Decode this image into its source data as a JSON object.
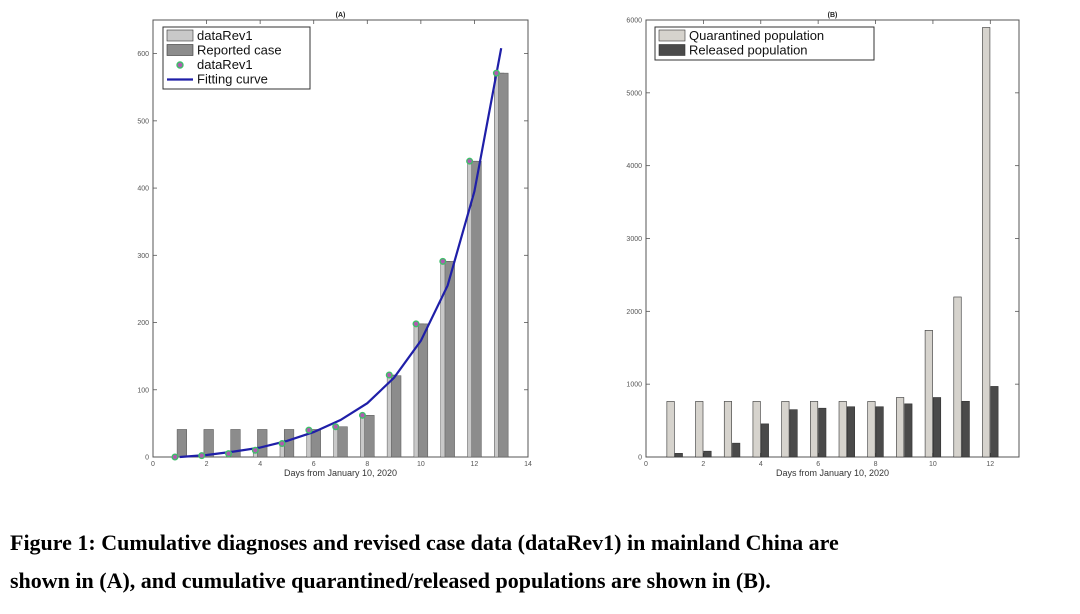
{
  "caption": {
    "line1": "Figure 1: Cumulative diagnoses and revised case data (dataRev1) in mainland China are",
    "line2": "shown in (A), and cumulative quarantined/released populations are shown in (B)."
  },
  "chart_data": [
    {
      "type": "bar",
      "title": "(A)",
      "xlabel": "Days from January 10, 2020",
      "ylabel": "",
      "xlim": [
        0,
        14
      ],
      "ylim": [
        0,
        650
      ],
      "xticks": [
        0,
        2,
        4,
        6,
        8,
        10,
        12,
        14
      ],
      "yticks": [
        0,
        100,
        200,
        300,
        400,
        500,
        600
      ],
      "grid": false,
      "legend_position": "top-left",
      "x": [
        1,
        2,
        3,
        4,
        5,
        6,
        7,
        8,
        9,
        10,
        11,
        12,
        13
      ],
      "series": [
        {
          "name": "dataRev1",
          "kind": "bar",
          "color": "#c9c9c9",
          "values": [
            0,
            2,
            5,
            10,
            20,
            40,
            45,
            62,
            122,
            198,
            291,
            440,
            571
          ]
        },
        {
          "name": "Reported case",
          "kind": "bar",
          "color": "#8c8c8c",
          "values": [
            41,
            41,
            41,
            41,
            41,
            41,
            45,
            62,
            121,
            198,
            291,
            440,
            571
          ]
        },
        {
          "name": "dataRev1",
          "kind": "marker",
          "color": "#b05ab0",
          "edge": "#3fbf6a",
          "values": [
            0,
            2,
            5,
            10,
            20,
            40,
            45,
            62,
            122,
            198,
            291,
            440,
            571
          ]
        },
        {
          "name": "Fitting curve",
          "kind": "line",
          "color": "#1f1fa8",
          "x": [
            1,
            2,
            3,
            4,
            5,
            6,
            7,
            8,
            9,
            10,
            11,
            12,
            13
          ],
          "values": [
            0,
            3,
            8,
            14,
            24,
            37,
            55,
            80,
            118,
            173,
            255,
            395,
            608
          ]
        }
      ]
    },
    {
      "type": "bar",
      "title": "(B)",
      "xlabel": "Days from January 10, 2020",
      "ylabel": "",
      "xlim": [
        0,
        13
      ],
      "ylim": [
        0,
        6000
      ],
      "xticks": [
        0,
        2,
        4,
        6,
        8,
        10,
        12
      ],
      "yticks": [
        0,
        1000,
        2000,
        3000,
        4000,
        5000,
        6000
      ],
      "grid": false,
      "legend_position": "top-left",
      "x": [
        1,
        2,
        3,
        4,
        5,
        6,
        7,
        8,
        9,
        10,
        11,
        12
      ],
      "series": [
        {
          "name": "Quarantined population",
          "color": "#d6d3cd",
          "values": [
            763,
            763,
            763,
            763,
            763,
            763,
            763,
            763,
            817,
            1739,
            2197,
            5897
          ]
        },
        {
          "name": "Released population",
          "color": "#4a4a4a",
          "values": [
            50,
            80,
            190,
            455,
            650,
            670,
            690,
            690,
            730,
            817,
            765,
            969
          ]
        }
      ]
    }
  ]
}
